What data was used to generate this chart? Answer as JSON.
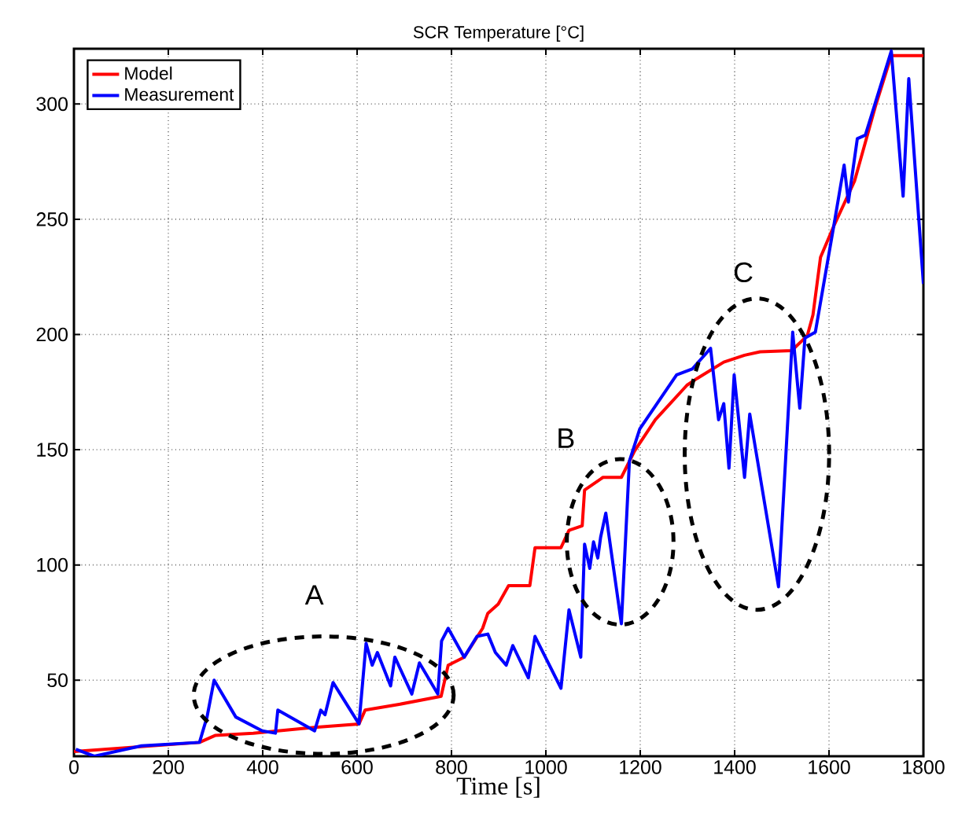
{
  "chart_data": {
    "type": "line",
    "title": "SCR Temperature [°C]",
    "xlabel": "Time [s]",
    "xlim": [
      0,
      1800
    ],
    "ylim": [
      17,
      324
    ],
    "xticks": [
      0,
      200,
      400,
      600,
      800,
      1000,
      1200,
      1400,
      1600,
      1800
    ],
    "yticks": [
      50,
      100,
      150,
      200,
      250,
      300
    ],
    "grid": true,
    "legend": "top left",
    "line_style": "solid",
    "marker": "none",
    "series": [
      {
        "name": "Model",
        "color": "#ff0000",
        "x": [
          0,
          266,
          299,
          380,
          510,
          604,
          617,
          689,
          778,
          793,
          827,
          866,
          877,
          899,
          921,
          943,
          966,
          977,
          1032,
          1049,
          1077,
          1082,
          1121,
          1160,
          1188,
          1232,
          1299,
          1321,
          1377,
          1421,
          1454,
          1521,
          1554,
          1566,
          1582,
          1610,
          1654,
          1699,
          1732,
          1800
        ],
        "values": [
          19,
          23,
          26,
          27,
          29.5,
          31,
          37,
          39.5,
          43,
          56.5,
          60,
          72.5,
          79,
          83,
          91,
          91,
          91,
          107.5,
          107.5,
          115,
          117,
          132.5,
          138,
          138,
          149.5,
          163,
          178,
          181,
          188,
          191,
          192.5,
          193,
          199.5,
          208.5,
          233.5,
          247,
          266.5,
          299.5,
          321,
          321
        ]
      },
      {
        "name": "Measurement",
        "color": "#0000ff",
        "x": [
          4,
          43,
          143,
          266,
          282,
          297,
          343,
          399,
          427,
          432,
          510,
          523,
          532,
          549,
          604,
          619,
          632,
          643,
          671,
          680,
          716,
          732,
          771,
          779,
          793,
          827,
          854,
          877,
          893,
          916,
          930,
          963,
          977,
          1032,
          1049,
          1074,
          1082,
          1093,
          1101,
          1110,
          1116,
          1127,
          1160,
          1177,
          1199,
          1277,
          1310,
          1349,
          1366,
          1377,
          1388,
          1399,
          1421,
          1432,
          1443,
          1493,
          1523,
          1538,
          1549,
          1571,
          1610,
          1632,
          1641,
          1660,
          1677,
          1732,
          1757,
          1769,
          1800
        ],
        "values": [
          20,
          17,
          21.5,
          23,
          34,
          50,
          34,
          28,
          27,
          37,
          28,
          37,
          35,
          49,
          31,
          66,
          56.5,
          62,
          47.5,
          60,
          44,
          57.5,
          44,
          67,
          72.5,
          60,
          69,
          70,
          62,
          56.5,
          65,
          51,
          69,
          46.5,
          80.5,
          60,
          109,
          98.5,
          110,
          103,
          112,
          122.5,
          74.5,
          145,
          159,
          182.5,
          185,
          194,
          163,
          170,
          142,
          182.5,
          138,
          165.5,
          152,
          90.5,
          201,
          168,
          198.5,
          201,
          247,
          273.5,
          257.5,
          285,
          286.5,
          323,
          260,
          311,
          222
        ]
      }
    ],
    "annotations": [
      "A",
      "B",
      "C"
    ]
  }
}
